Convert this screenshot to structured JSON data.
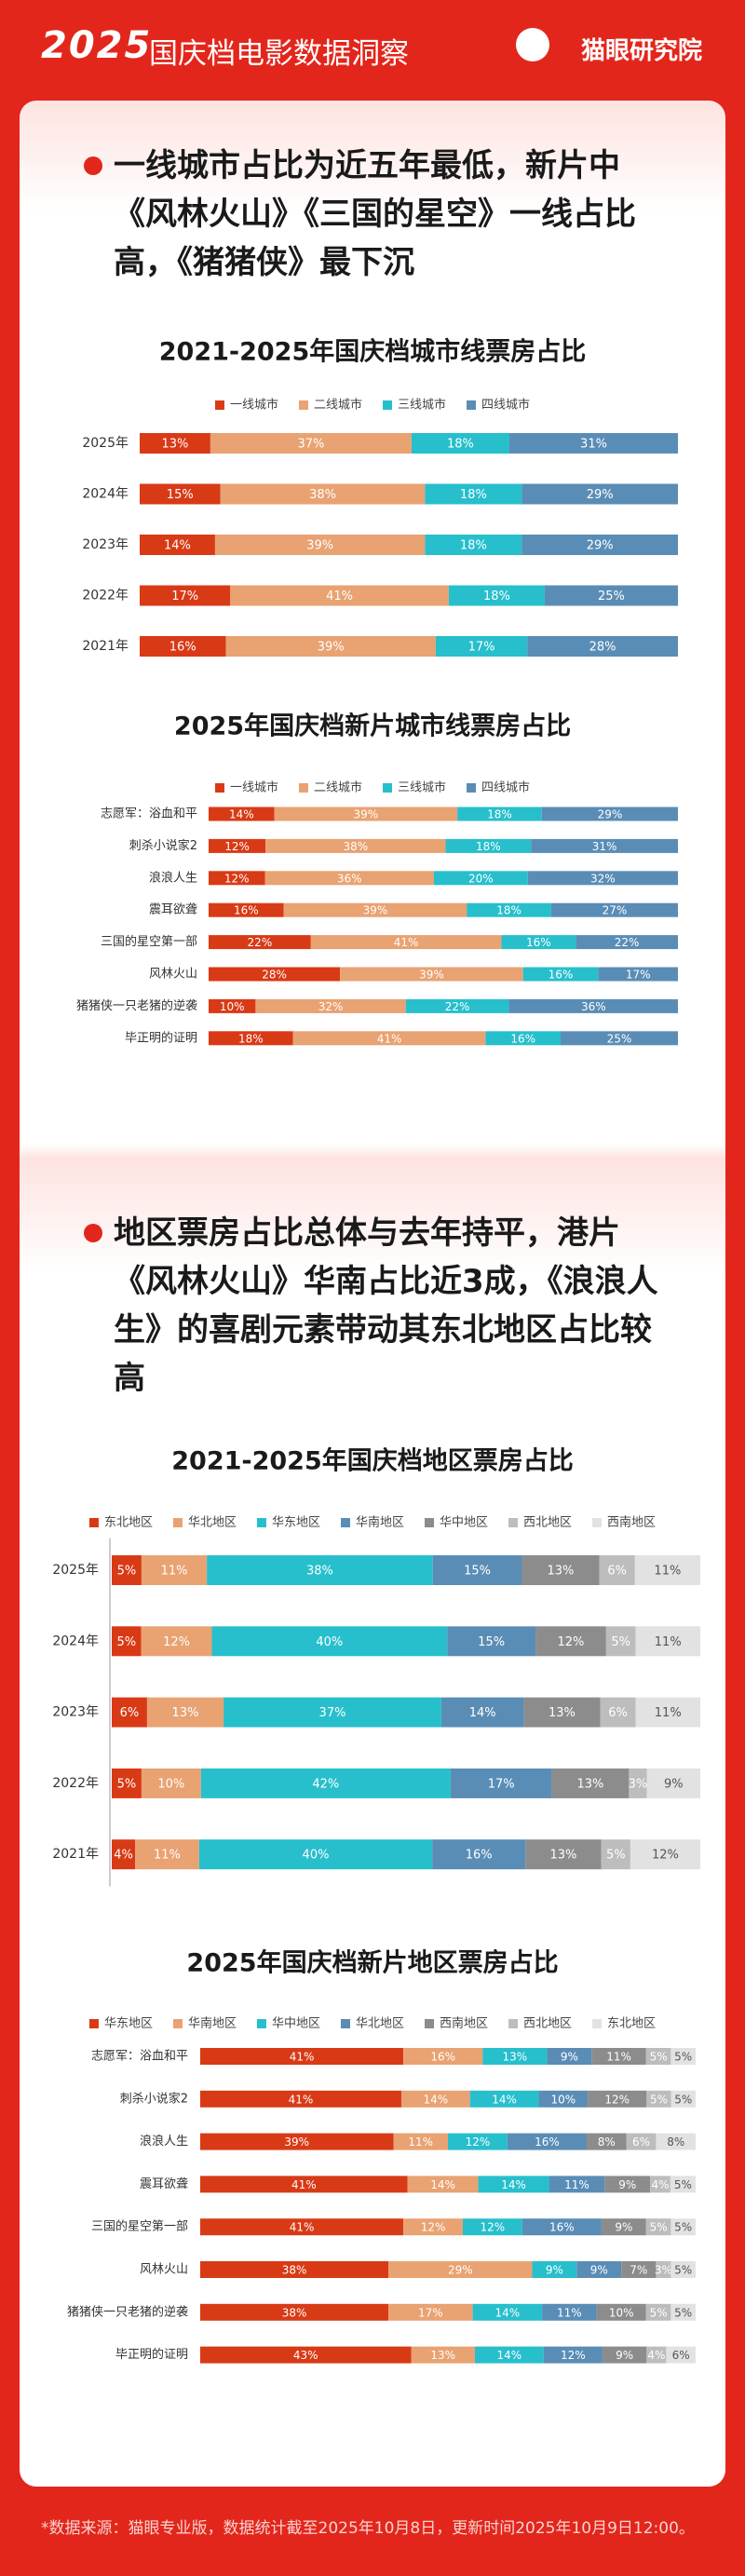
{
  "header": {
    "year": "2025",
    "title": "国庆档电影数据洞察",
    "brand": "猫眼研究院"
  },
  "sections": [
    {
      "headline": "一线城市占比为近五年最低，新片中《风林火山》《三国的星空》一线占比高，《猪猪侠》最下沉"
    },
    {
      "headline": "地区票房占比总体与去年持平，港片《风林火山》华南占比近3成，《浪浪人生》的喜剧元素带动其东北地区占比较高"
    }
  ],
  "chart_data": [
    {
      "type": "bar",
      "orientation": "horizontal",
      "stacked": true,
      "title": "2021-2025年国庆档城市线票房占比",
      "categories": [
        "2025年",
        "2024年",
        "2023年",
        "2022年",
        "2021年"
      ],
      "series": [
        {
          "name": "一线城市",
          "color": "#d93a16",
          "values": [
            13,
            15,
            14,
            17,
            16
          ],
          "value_labels": [
            "13%",
            "15%",
            "14%",
            "17%",
            "16%"
          ]
        },
        {
          "name": "二线城市",
          "color": "#e9a272",
          "values": [
            37,
            38,
            39,
            41,
            39
          ],
          "value_labels": [
            "37%",
            "38%",
            "39%",
            "41%",
            "39%"
          ]
        },
        {
          "name": "三线城市",
          "color": "#27bfcc",
          "values": [
            18,
            18,
            18,
            18,
            17
          ],
          "value_labels": [
            "18%",
            "18%",
            "18%",
            "18%",
            "17%"
          ]
        },
        {
          "name": "四线城市",
          "color": "#5a8db6",
          "values": [
            31,
            29,
            29,
            25,
            28
          ],
          "value_labels": [
            "31%",
            "29%",
            "29%",
            "25%",
            "28%"
          ]
        }
      ]
    },
    {
      "type": "bar",
      "orientation": "horizontal",
      "stacked": true,
      "title": "2025年国庆档新片城市线票房占比",
      "categories": [
        "志愿军：浴血和平",
        "刺杀小说家2",
        "浪浪人生",
        "震耳欲聋",
        "三国的星空第一部",
        "风林火山",
        "猪猪侠一只老猪的逆袭",
        "毕正明的证明"
      ],
      "series": [
        {
          "name": "一线城市",
          "color": "#d93a16",
          "values": [
            14,
            12,
            12,
            16,
            22,
            28,
            10,
            18
          ],
          "value_labels": [
            "14%",
            "12%",
            "12%",
            "16%",
            "22%",
            "28%",
            "10%",
            "18%"
          ]
        },
        {
          "name": "二线城市",
          "color": "#e9a272",
          "values": [
            39,
            38,
            36,
            39,
            41,
            39,
            32,
            41
          ],
          "value_labels": [
            "39%",
            "38%",
            "36%",
            "39%",
            "41%",
            "39%",
            "32%",
            "41%"
          ]
        },
        {
          "name": "三线城市",
          "color": "#27bfcc",
          "values": [
            18,
            18,
            20,
            18,
            16,
            16,
            22,
            16
          ],
          "value_labels": [
            "18%",
            "18%",
            "20%",
            "18%",
            "16%",
            "16%",
            "22%",
            "16%"
          ]
        },
        {
          "name": "四线城市",
          "color": "#5a8db6",
          "values": [
            29,
            31,
            32,
            27,
            22,
            17,
            36,
            25
          ],
          "value_labels": [
            "29%",
            "31%",
            "32%",
            "27%",
            "22%",
            "17%",
            "36%",
            "25%"
          ]
        }
      ]
    },
    {
      "type": "bar",
      "orientation": "horizontal",
      "stacked": true,
      "title": "2021-2025年国庆档地区票房占比",
      "categories": [
        "2025年",
        "2024年",
        "2023年",
        "2022年",
        "2021年"
      ],
      "series": [
        {
          "name": "东北地区",
          "color": "#d93a16",
          "values": [
            5,
            5,
            6,
            5,
            4
          ],
          "value_labels": [
            "5%",
            "5%",
            "6%",
            "5%",
            "4%"
          ]
        },
        {
          "name": "华北地区",
          "color": "#e9a272",
          "values": [
            11,
            12,
            13,
            10,
            11
          ],
          "value_labels": [
            "11%",
            "12%",
            "13%",
            "10%",
            "11%"
          ]
        },
        {
          "name": "华东地区",
          "color": "#27bfcc",
          "values": [
            38,
            40,
            37,
            42,
            40
          ],
          "value_labels": [
            "38%",
            "40%",
            "37%",
            "42%",
            "40%"
          ]
        },
        {
          "name": "华南地区",
          "color": "#5a8db6",
          "values": [
            15,
            15,
            14,
            17,
            16
          ],
          "value_labels": [
            "15%",
            "15%",
            "14%",
            "17%",
            "16%"
          ]
        },
        {
          "name": "华中地区",
          "color": "#8c8c8c",
          "values": [
            13,
            12,
            13,
            13,
            13
          ],
          "value_labels": [
            "13%",
            "12%",
            "13%",
            "13%",
            "13%"
          ]
        },
        {
          "name": "西北地区",
          "color": "#bdbdbd",
          "values": [
            6,
            5,
            6,
            3,
            5
          ],
          "value_labels": [
            "6%",
            "5%",
            "6%",
            "3%",
            "5%"
          ]
        },
        {
          "name": "西南地区",
          "color": "#e2e2e2",
          "values": [
            11,
            11,
            11,
            9,
            12
          ],
          "value_labels": [
            "11%",
            "11%",
            "11%",
            "9%",
            "12%"
          ]
        }
      ]
    },
    {
      "type": "bar",
      "orientation": "horizontal",
      "stacked": true,
      "title": "2025年国庆档新片地区票房占比",
      "categories": [
        "志愿军：浴血和平",
        "刺杀小说家2",
        "浪浪人生",
        "震耳欲聋",
        "三国的星空第一部",
        "风林火山",
        "猪猪侠一只老猪的逆袭",
        "毕正明的证明"
      ],
      "series": [
        {
          "name": "华东地区",
          "color": "#d93a16",
          "values": [
            41,
            41,
            39,
            41,
            41,
            38,
            38,
            43
          ],
          "value_labels": [
            "41%",
            "41%",
            "39%",
            "41%",
            "41%",
            "38%",
            "38%",
            "43%"
          ]
        },
        {
          "name": "华南地区",
          "color": "#e9a272",
          "values": [
            16,
            14,
            11,
            14,
            12,
            29,
            17,
            13
          ],
          "value_labels": [
            "16%",
            "14%",
            "11%",
            "14%",
            "12%",
            "29%",
            "17%",
            "13%"
          ]
        },
        {
          "name": "华中地区",
          "color": "#27bfcc",
          "values": [
            13,
            14,
            12,
            14,
            12,
            9,
            14,
            14
          ],
          "value_labels": [
            "13%",
            "14%",
            "12%",
            "14%",
            "12%",
            "9%",
            "14%",
            "14%"
          ]
        },
        {
          "name": "华北地区",
          "color": "#5a8db6",
          "values": [
            9,
            10,
            16,
            11,
            16,
            9,
            11,
            12
          ],
          "value_labels": [
            "9%",
            "10%",
            "16%",
            "11%",
            "16%",
            "9%",
            "11%",
            "12%"
          ]
        },
        {
          "name": "西南地区",
          "color": "#8c8c8c",
          "values": [
            11,
            12,
            8,
            9,
            9,
            7,
            10,
            9
          ],
          "value_labels": [
            "11%",
            "12%",
            "8%",
            "9%",
            "9%",
            "7%",
            "10%",
            "9%"
          ]
        },
        {
          "name": "西北地区",
          "color": "#bdbdbd",
          "values": [
            5,
            5,
            6,
            4,
            5,
            3,
            5,
            4
          ],
          "value_labels": [
            "5%",
            "5%",
            "6%",
            "4%",
            "5%",
            "3%",
            "5%",
            "4%"
          ]
        },
        {
          "name": "东北地区",
          "color": "#e2e2e2",
          "values": [
            5,
            5,
            8,
            5,
            5,
            5,
            5,
            6
          ],
          "value_labels": [
            "5%",
            "5%",
            "8%",
            "5%",
            "5%",
            "5%",
            "5%",
            "6%"
          ]
        }
      ]
    }
  ],
  "footer": "*数据来源：猫眼专业版，数据统计截至2025年10月8日，更新时间2025年10月9日12:00。"
}
